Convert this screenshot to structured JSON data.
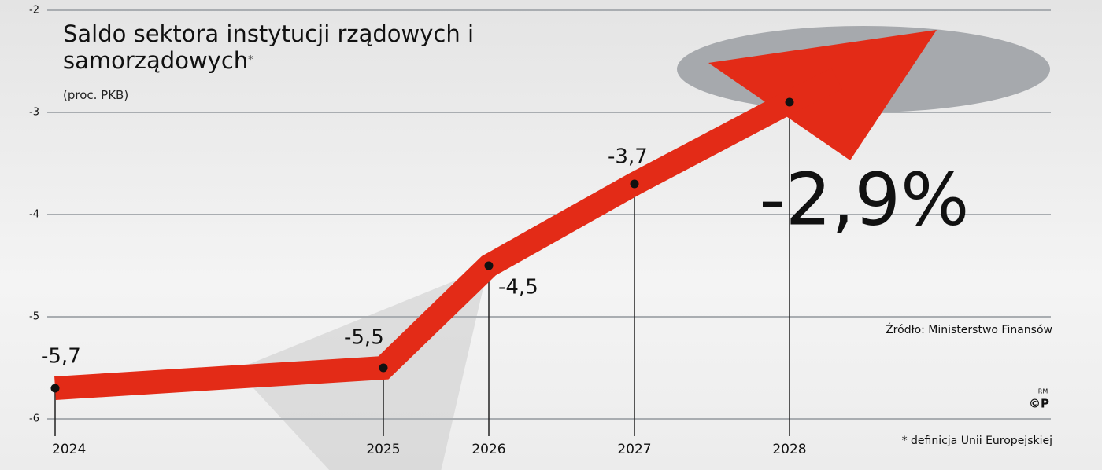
{
  "chart_data": {
    "type": "line",
    "title": "Saldo sektora instytucji rządowych i samorządowych",
    "title_mark": "*",
    "subtitle": "(proc. PKB)",
    "categories": [
      "2024",
      "2025",
      "2026",
      "2027",
      "2028"
    ],
    "series": [
      {
        "color": "#e32b17",
        "values": [
          -5.7,
          -5.5,
          -4.5,
          -3.7,
          -2.9
        ],
        "value_labels": [
          "-5,7",
          "-5,5",
          "-4,5",
          "-3,7",
          "-2,9%"
        ]
      }
    ],
    "ylim": [
      -6,
      -2
    ],
    "yticks": [
      -6,
      -5,
      -4,
      -3,
      -2
    ],
    "grid": true,
    "source": "Źródło: Ministerstwo Finansów",
    "footnote": "* definicja Unii Europejskiej",
    "credit": "RM",
    "logo": "©P"
  }
}
